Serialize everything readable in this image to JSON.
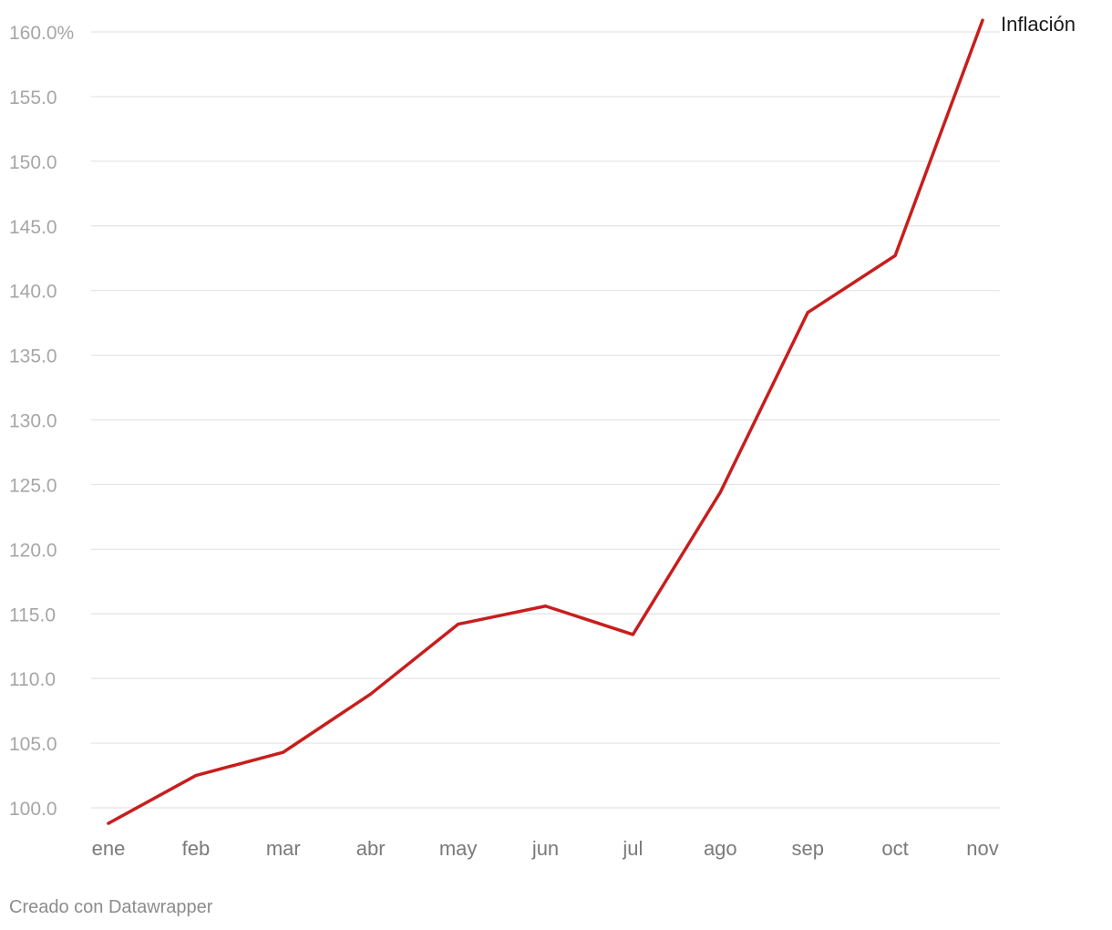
{
  "chart_data": {
    "type": "line",
    "categories": [
      "ene",
      "feb",
      "mar",
      "abr",
      "may",
      "jun",
      "jul",
      "ago",
      "sep",
      "oct",
      "nov"
    ],
    "series": [
      {
        "name": "Inflación",
        "values": [
          98.8,
          102.5,
          104.3,
          108.8,
          114.2,
          115.6,
          113.4,
          124.4,
          138.3,
          142.7,
          160.9
        ],
        "color": "#c71e1d"
      }
    ],
    "yticks": [
      "100.0",
      "105.0",
      "110.0",
      "115.0",
      "120.0",
      "125.0",
      "130.0",
      "135.0",
      "140.0",
      "145.0",
      "150.0",
      "155.0",
      "160.0%"
    ],
    "ylim": [
      100,
      160
    ],
    "grid": true,
    "title": "",
    "xlabel": "",
    "ylabel": ""
  },
  "footer": {
    "credit": "Creado con Datawrapper"
  }
}
